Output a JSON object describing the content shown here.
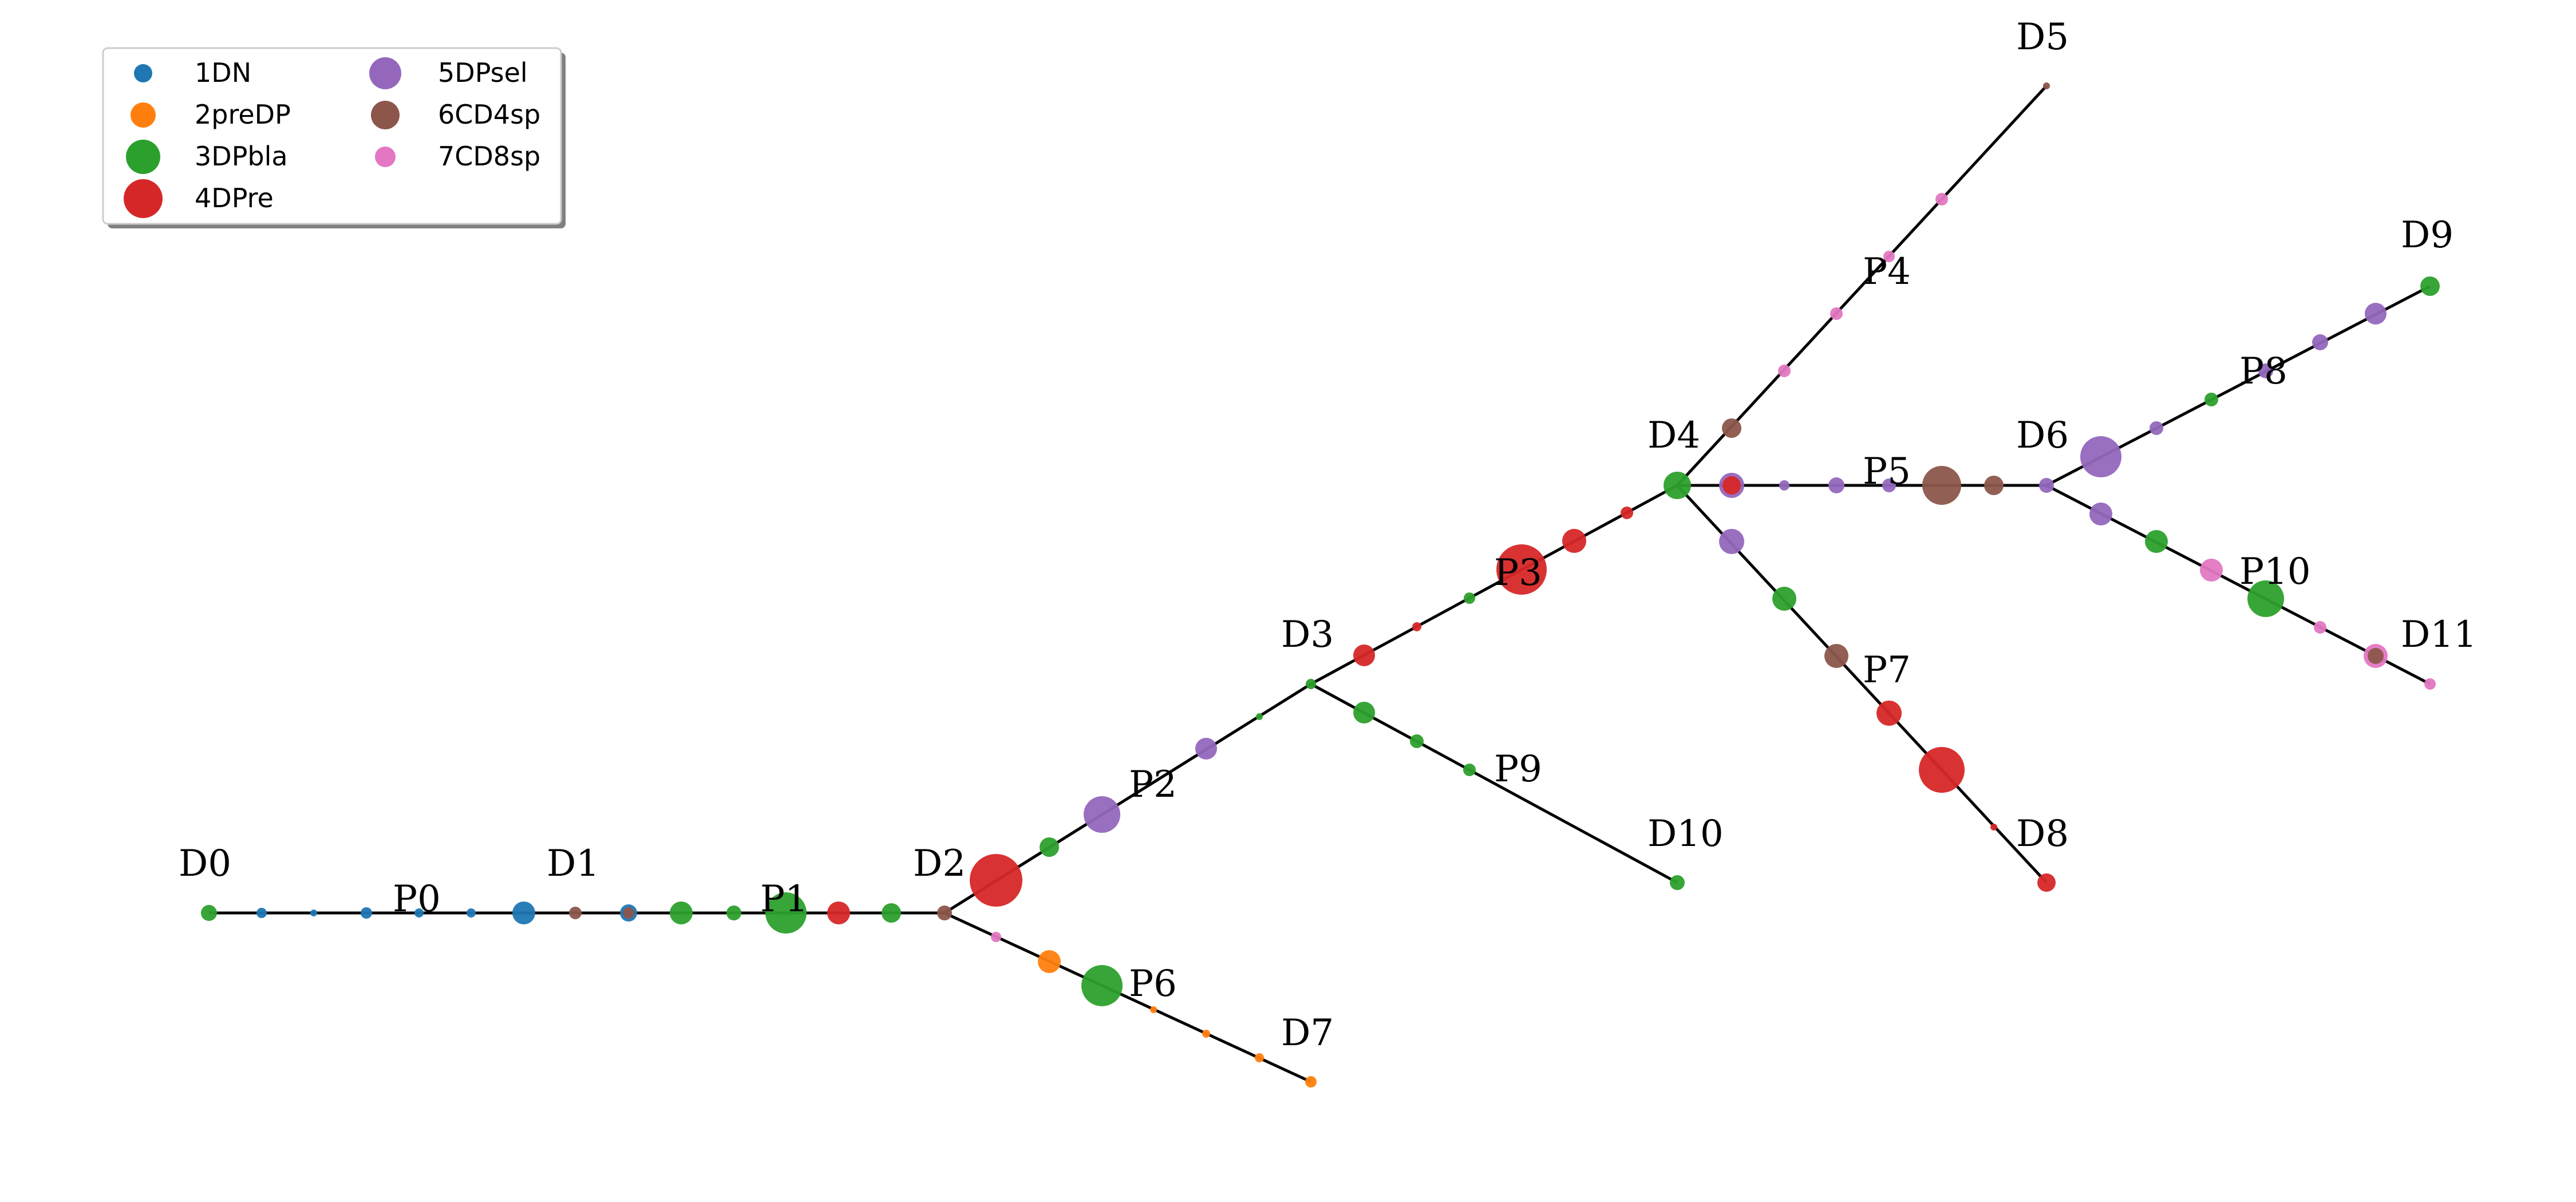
{
  "legend": {
    "items": [
      {
        "label": "1DN",
        "color": "#1f77b4",
        "size": "small"
      },
      {
        "label": "2preDP",
        "color": "#ff7f0e",
        "size": "small"
      },
      {
        "label": "3DPbla",
        "color": "#2ca02c",
        "size": "medium"
      },
      {
        "label": "4DPre",
        "color": "#d62728",
        "size": "large"
      },
      {
        "label": "5DPsel",
        "color": "#9467bd",
        "size": "medium"
      },
      {
        "label": "6CD4sp",
        "color": "#8c564b",
        "size": "medium-small"
      },
      {
        "label": "7CD8sp",
        "color": "#e377c2",
        "size": "small"
      }
    ]
  },
  "colors": {
    "1DN": "#1f77b4",
    "2preDP": "#ff7f0e",
    "3DPbla": "#2ca02c",
    "4DPre": "#d62728",
    "5DPsel": "#9467bd",
    "6CD4sp": "#8c564b",
    "7CD8sp": "#e377c2",
    "edge": "#000000"
  },
  "nodes": [
    {
      "id": "D0",
      "label": "D0"
    },
    {
      "id": "P0",
      "label": "P0"
    },
    {
      "id": "D1",
      "label": "D1"
    },
    {
      "id": "P1",
      "label": "P1"
    },
    {
      "id": "D2",
      "label": "D2"
    },
    {
      "id": "P2",
      "label": "P2"
    },
    {
      "id": "D3",
      "label": "D3"
    },
    {
      "id": "P3",
      "label": "P3"
    },
    {
      "id": "D4",
      "label": "D4"
    },
    {
      "id": "P4",
      "label": "P4"
    },
    {
      "id": "D5",
      "label": "D5"
    },
    {
      "id": "P5",
      "label": "P5"
    },
    {
      "id": "D6",
      "label": "D6"
    },
    {
      "id": "P8",
      "label": "P8"
    },
    {
      "id": "D9",
      "label": "D9"
    },
    {
      "id": "P10",
      "label": "P10"
    },
    {
      "id": "D11",
      "label": "D11"
    },
    {
      "id": "P7",
      "label": "P7"
    },
    {
      "id": "D8",
      "label": "D8"
    },
    {
      "id": "P9",
      "label": "P9"
    },
    {
      "id": "D10",
      "label": "D10"
    },
    {
      "id": "P6",
      "label": "P6"
    },
    {
      "id": "D7",
      "label": "D7"
    }
  ],
  "edges": [
    {
      "from": "D0",
      "to": "D1"
    },
    {
      "from": "D1",
      "to": "D2"
    },
    {
      "from": "D2",
      "to": "D3"
    },
    {
      "from": "D3",
      "to": "D4"
    },
    {
      "from": "D4",
      "to": "D5"
    },
    {
      "from": "D4",
      "to": "D6"
    },
    {
      "from": "D6",
      "to": "D9"
    },
    {
      "from": "D6",
      "to": "D11"
    },
    {
      "from": "D4",
      "to": "D8"
    },
    {
      "from": "D3",
      "to": "D10"
    },
    {
      "from": "D2",
      "to": "D7"
    }
  ]
}
